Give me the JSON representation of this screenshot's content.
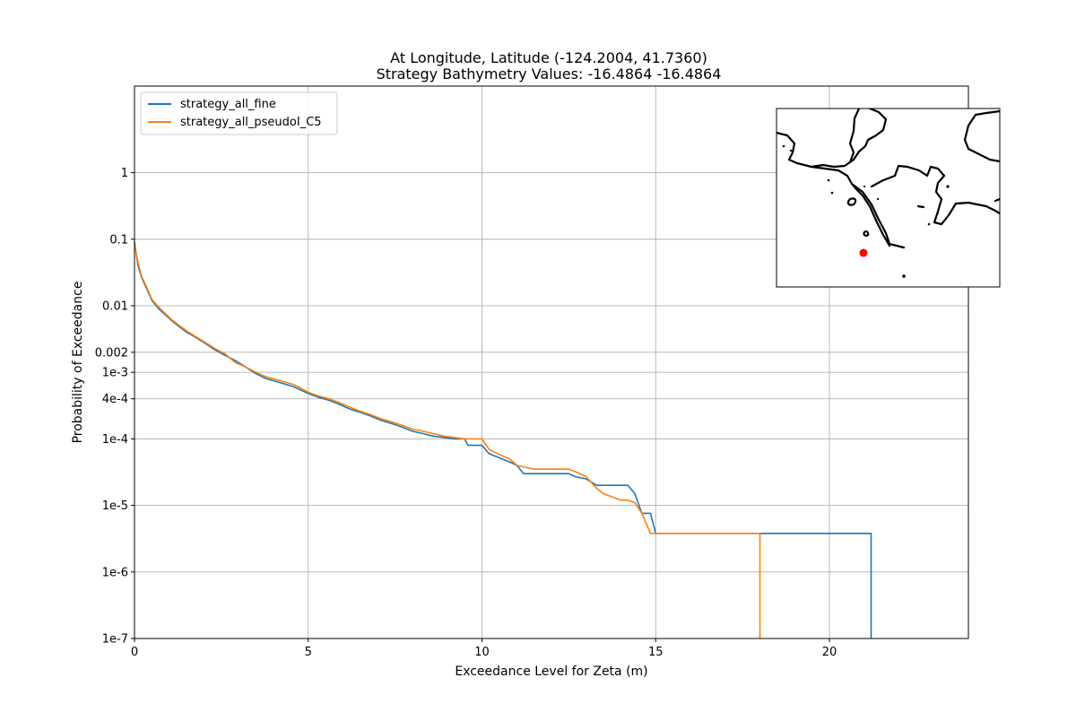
{
  "chart_data": {
    "type": "line",
    "title": [
      "At Longitude, Latitude (-124.2004,  41.7360)",
      "Strategy Bathymetry Values:  -16.4864  -16.4864"
    ],
    "xlabel": "Exceedance Level for Zeta (m)",
    "ylabel": "Probability of Exceedance",
    "xlim": [
      0,
      24
    ],
    "ylim": [
      1e-07,
      20
    ],
    "yscale": "log",
    "xticks": [
      0,
      5,
      10,
      15,
      20
    ],
    "yticks": [
      {
        "value": 1,
        "label": "1"
      },
      {
        "value": 0.1,
        "label": "0.1"
      },
      {
        "value": 0.01,
        "label": "0.01"
      },
      {
        "value": 0.002,
        "label": "0.002"
      },
      {
        "value": 0.001,
        "label": "1e-3"
      },
      {
        "value": 0.0004,
        "label": "4e-4"
      },
      {
        "value": 0.0001,
        "label": "1e-4"
      },
      {
        "value": 1e-05,
        "label": "1e-5"
      },
      {
        "value": 1e-06,
        "label": "1e-6"
      },
      {
        "value": 1e-07,
        "label": "1e-7"
      }
    ],
    "grid": true,
    "legend_position": "upper-left",
    "series": [
      {
        "name": "strategy_all_fine",
        "color": "#1f77b4",
        "x": [
          0,
          0.1,
          0.2,
          0.35,
          0.5,
          0.7,
          0.9,
          1.1,
          1.3,
          1.5,
          1.7,
          2.0,
          2.3,
          2.6,
          2.9,
          3.2,
          3.5,
          3.8,
          4.2,
          4.6,
          5.0,
          5.3,
          5.6,
          5.9,
          6.2,
          6.5,
          6.8,
          7.1,
          7.4,
          7.7,
          8.0,
          8.3,
          8.6,
          8.9,
          9.2,
          9.5,
          9.6,
          10.0,
          10.2,
          10.5,
          10.8,
          11.0,
          11.2,
          11.5,
          11.8,
          12.0,
          12.5,
          12.7,
          13.0,
          13.3,
          13.5,
          14.0,
          14.2,
          14.4,
          14.6,
          14.85,
          15.0,
          21.2,
          21.2
        ],
        "y": [
          0.09,
          0.04,
          0.027,
          0.018,
          0.012,
          0.009,
          0.0072,
          0.0058,
          0.0048,
          0.004,
          0.0035,
          0.0028,
          0.0022,
          0.0018,
          0.0015,
          0.0012,
          0.00095,
          0.0008,
          0.0007,
          0.0006,
          0.00048,
          0.00042,
          0.00038,
          0.00033,
          0.00028,
          0.00025,
          0.00022,
          0.00019,
          0.00017,
          0.00015,
          0.00013,
          0.00012,
          0.00011,
          0.000105,
          0.0001,
          0.0001,
          8e-05,
          8e-05,
          6e-05,
          5.2e-05,
          4.5e-05,
          4e-05,
          3e-05,
          3e-05,
          3e-05,
          3e-05,
          3e-05,
          2.7e-05,
          2.5e-05,
          2e-05,
          2e-05,
          2e-05,
          2e-05,
          1.5e-05,
          7.6e-06,
          7.6e-06,
          3.8e-06,
          3.8e-06,
          1e-07
        ]
      },
      {
        "name": "strategy_all_pseudoI_C5",
        "color": "#ff7f0e",
        "x": [
          0,
          0.1,
          0.2,
          0.35,
          0.5,
          0.7,
          0.9,
          1.1,
          1.3,
          1.5,
          1.7,
          2.0,
          2.3,
          2.6,
          2.9,
          3.2,
          3.5,
          3.8,
          4.2,
          4.6,
          5.0,
          5.3,
          5.6,
          5.9,
          6.2,
          6.5,
          6.8,
          7.1,
          7.4,
          7.7,
          8.0,
          8.3,
          8.6,
          8.9,
          9.2,
          9.5,
          9.6,
          10.0,
          10.2,
          10.5,
          10.8,
          11.0,
          11.2,
          11.5,
          11.8,
          12.0,
          12.5,
          12.7,
          13.0,
          13.3,
          13.5,
          14.0,
          14.2,
          14.4,
          14.6,
          14.85,
          15.0,
          18.0,
          18.0
        ],
        "y": [
          0.085,
          0.045,
          0.028,
          0.019,
          0.0125,
          0.0095,
          0.0075,
          0.006,
          0.005,
          0.0042,
          0.0036,
          0.0029,
          0.0023,
          0.0019,
          0.0014,
          0.0012,
          0.001,
          0.00085,
          0.00075,
          0.00065,
          0.0005,
          0.00044,
          0.0004,
          0.00035,
          0.0003,
          0.00026,
          0.00023,
          0.0002,
          0.00018,
          0.00016,
          0.00014,
          0.00013,
          0.00012,
          0.00011,
          0.000105,
          0.0001,
          0.0001,
          0.0001,
          7e-05,
          5.8e-05,
          5e-05,
          4e-05,
          3.8e-05,
          3.5e-05,
          3.5e-05,
          3.5e-05,
          3.5e-05,
          3.2e-05,
          2.7e-05,
          1.8e-05,
          1.5e-05,
          1.2e-05,
          1.2e-05,
          1.1e-05,
          7.6e-06,
          3.8e-06,
          3.8e-06,
          3.8e-06,
          1e-07
        ]
      }
    ],
    "inset_map": {
      "type": "location_map",
      "marker_color": "#ff0000"
    }
  }
}
